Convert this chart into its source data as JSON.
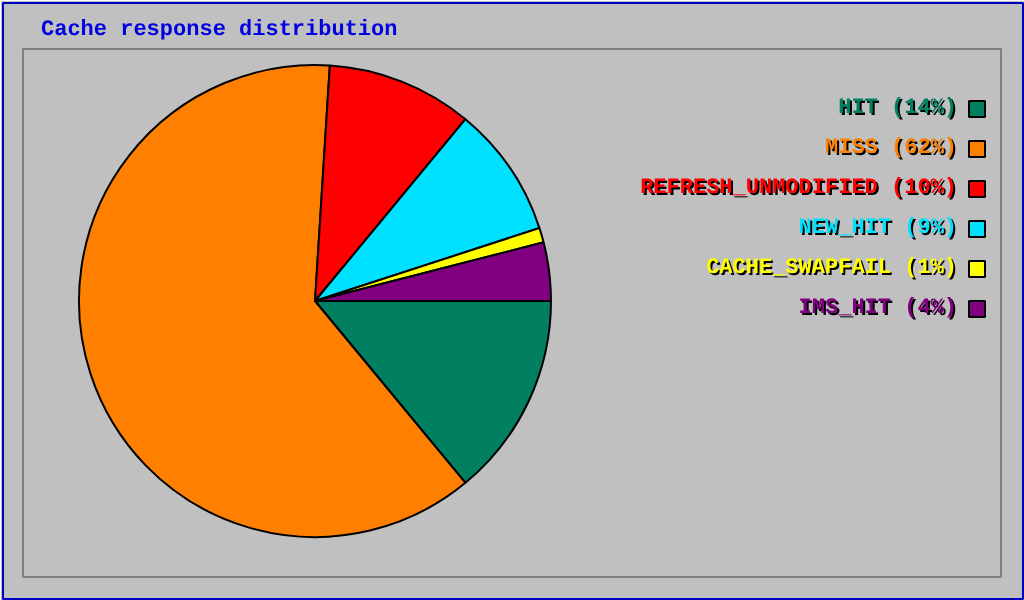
{
  "chart_data": {
    "type": "pie",
    "title": "Cache response distribution",
    "categories": [
      "HIT (14%)",
      "MISS (62%)",
      "REFRESH_UNMODIFIED (10%)",
      "NEW_HIT (9%)",
      "CACHE_SWAPFAIL (1%)",
      "IMS_HIT (4%)"
    ],
    "values": [
      14,
      62,
      10,
      9,
      1,
      4
    ],
    "colors": [
      "#008060",
      "#ff8000",
      "#ff0000",
      "#00e0ff",
      "#ffff00",
      "#800080"
    ],
    "legend": "right"
  }
}
